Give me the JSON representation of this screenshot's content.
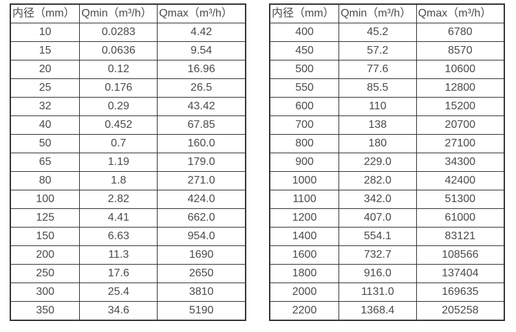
{
  "colors": {
    "background": "#ffffff",
    "border": "#333333",
    "text": "#4a4a4a"
  },
  "tables": [
    {
      "headers": [
        "内径（mm）",
        "Qmin（m³/h）",
        "Qmax（m³/h）"
      ],
      "rows": [
        [
          "10",
          "0.0283",
          "4.42"
        ],
        [
          "15",
          "0.0636",
          "9.54"
        ],
        [
          "20",
          "0.12",
          "16.96"
        ],
        [
          "25",
          "0.176",
          "26.5"
        ],
        [
          "32",
          "0.29",
          "43.42"
        ],
        [
          "40",
          "0.452",
          "67.85"
        ],
        [
          "50",
          "0.7",
          "160.0"
        ],
        [
          "65",
          "1.19",
          "179.0"
        ],
        [
          "80",
          "1.8",
          "271.0"
        ],
        [
          "100",
          "2.82",
          "424.0"
        ],
        [
          "125",
          "4.41",
          "662.0"
        ],
        [
          "150",
          "6.63",
          "954.0"
        ],
        [
          "200",
          "11.3",
          "1690"
        ],
        [
          "250",
          "17.6",
          "2650"
        ],
        [
          "300",
          "25.4",
          "3810"
        ],
        [
          "350",
          "34.6",
          "5190"
        ]
      ]
    },
    {
      "headers": [
        "内径（mm）",
        "Qmin（m³/h）",
        "Qmax（m³/h）"
      ],
      "rows": [
        [
          "400",
          "45.2",
          "6780"
        ],
        [
          "450",
          "57.2",
          "8570"
        ],
        [
          "500",
          "77.6",
          "10600"
        ],
        [
          "550",
          "85.5",
          "12800"
        ],
        [
          "600",
          "110",
          "15200"
        ],
        [
          "700",
          "138",
          "20700"
        ],
        [
          "800",
          "180",
          "27100"
        ],
        [
          "900",
          "229.0",
          "34300"
        ],
        [
          "1000",
          "282.0",
          "42400"
        ],
        [
          "1100",
          "342.0",
          "51300"
        ],
        [
          "1200",
          "407.0",
          "61000"
        ],
        [
          "1400",
          "554.1",
          "83121"
        ],
        [
          "1600",
          "732.7",
          "108566"
        ],
        [
          "1800",
          "916.0",
          "137404"
        ],
        [
          "2000",
          "1131.0",
          "169635"
        ],
        [
          "2200",
          "1368.4",
          "205258"
        ]
      ]
    }
  ]
}
